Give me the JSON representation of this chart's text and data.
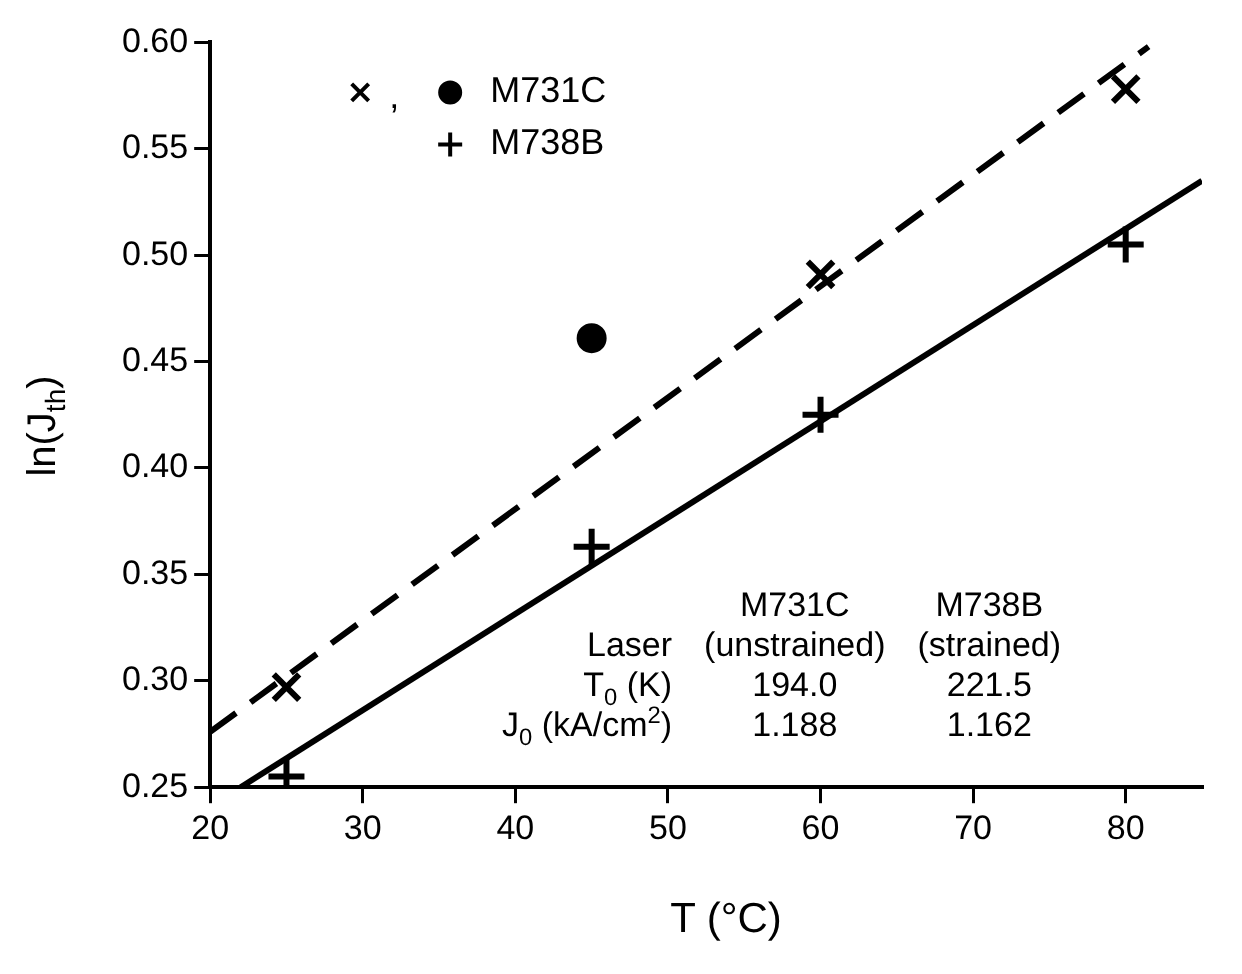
{
  "chart_data": {
    "type": "scatter",
    "xlabel": "T (°C)",
    "ylabel": "ln(J$_{th}$)",
    "xlim": [
      20,
      85
    ],
    "xticks": [
      20,
      30,
      40,
      50,
      60,
      70,
      80
    ],
    "ylim": [
      0.25,
      0.6
    ],
    "yticks": [
      0.25,
      {
        "value": 0.3,
        "label": "0.30"
      },
      0.35,
      {
        "value": 0.4,
        "label": "0.40"
      },
      0.45,
      {
        "value": 0.5,
        "label": "0.50"
      },
      0.55,
      {
        "value": 0.6,
        "label": "0.60"
      }
    ],
    "grid": false,
    "legend": "top left",
    "series": [
      {
        "name": "M731C",
        "marker": "cross",
        "color": "#000000",
        "x": [
          25,
          60,
          80
        ],
        "values": [
          0.297,
          0.491,
          0.578
        ]
      },
      {
        "marker": "circle",
        "color": "#000000",
        "x": [
          45
        ],
        "values": [
          0.461
        ]
      },
      {
        "name": "M738B",
        "marker": "plus",
        "color": "#000000",
        "x": [
          25,
          45,
          60,
          80
        ],
        "values": [
          0.255,
          0.363,
          0.425,
          0.505
        ]
      },
      {
        "type": "line",
        "line_style": "dashed",
        "marker": "none",
        "color": "#000000",
        "x": [
          20,
          81.5
        ],
        "values": [
          0.276,
          0.598
        ]
      },
      {
        "type": "line",
        "line_style": "solid",
        "marker": "none",
        "color": "#000000",
        "x": [
          22,
          85
        ],
        "values": [
          0.25,
          0.535
        ]
      }
    ],
    "annotations": [
      ",",
      "M731C",
      "M738B",
      "Laser",
      "(unstrained)",
      "(strained)",
      "T$_{0}$ (K)",
      "194.0",
      "221.5",
      "J$_{0}$ (kA/cm$^{2}$)",
      "1.188",
      "1.162"
    ]
  }
}
